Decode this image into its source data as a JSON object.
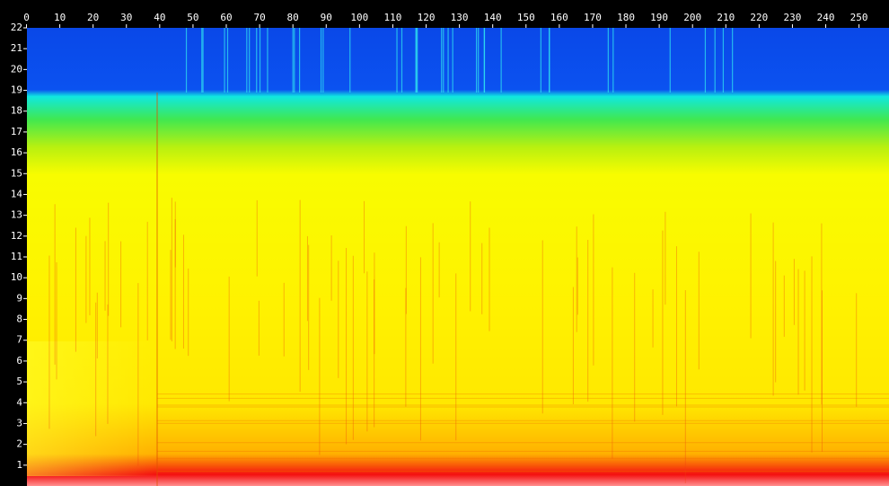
{
  "chart_data": {
    "type": "spectrogram",
    "xlim": [
      0,
      259
    ],
    "xticks": [
      0,
      10,
      20,
      30,
      40,
      50,
      60,
      70,
      80,
      90,
      100,
      110,
      120,
      130,
      140,
      150,
      160,
      170,
      180,
      190,
      200,
      210,
      220,
      230,
      240,
      250
    ],
    "ylim": [
      0,
      22
    ],
    "yticks": [
      1,
      2,
      3,
      4,
      5,
      6,
      7,
      8,
      9,
      10,
      11,
      12,
      13,
      14,
      15,
      16,
      17,
      18,
      19,
      20,
      21,
      22
    ],
    "grid": false
  }
}
